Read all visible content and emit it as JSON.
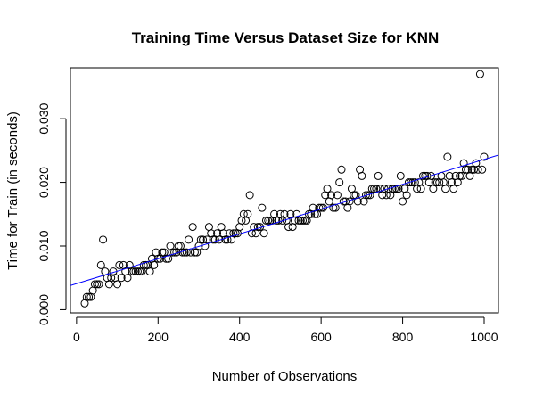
{
  "chart_data": {
    "type": "scatter",
    "title": "Training Time Versus Dataset Size for KNN",
    "xlabel": "Number of Observations",
    "ylabel": "Time for Train (in seconds)",
    "xlim": [
      -15,
      1035
    ],
    "ylim": [
      -0.0005,
      0.038
    ],
    "xticks": [
      0,
      200,
      400,
      600,
      800,
      1000
    ],
    "xtick_labels": [
      "0",
      "200",
      "400",
      "600",
      "800",
      "1000"
    ],
    "yticks": [
      0.0,
      0.01,
      0.02,
      0.03
    ],
    "ytick_labels": [
      "0.000",
      "0.010",
      "0.020",
      "0.030"
    ],
    "grid": false,
    "regression_line": {
      "intercept": 0.0041,
      "slope": 1.95e-05,
      "color": "#0000ff"
    },
    "series": [
      {
        "marker": "open-circle",
        "points": [
          [
            20,
            0.001
          ],
          [
            25,
            0.002
          ],
          [
            30,
            0.002
          ],
          [
            35,
            0.002
          ],
          [
            40,
            0.003
          ],
          [
            45,
            0.004
          ],
          [
            50,
            0.004
          ],
          [
            55,
            0.004
          ],
          [
            60,
            0.007
          ],
          [
            65,
            0.011
          ],
          [
            70,
            0.006
          ],
          [
            75,
            0.005
          ],
          [
            80,
            0.004
          ],
          [
            85,
            0.005
          ],
          [
            90,
            0.006
          ],
          [
            95,
            0.005
          ],
          [
            100,
            0.004
          ],
          [
            105,
            0.007
          ],
          [
            110,
            0.005
          ],
          [
            115,
            0.007
          ],
          [
            120,
            0.006
          ],
          [
            125,
            0.005
          ],
          [
            130,
            0.007
          ],
          [
            135,
            0.006
          ],
          [
            140,
            0.006
          ],
          [
            145,
            0.006
          ],
          [
            150,
            0.006
          ],
          [
            155,
            0.006
          ],
          [
            160,
            0.006
          ],
          [
            165,
            0.007
          ],
          [
            170,
            0.007
          ],
          [
            175,
            0.007
          ],
          [
            180,
            0.006
          ],
          [
            185,
            0.008
          ],
          [
            190,
            0.007
          ],
          [
            195,
            0.009
          ],
          [
            200,
            0.008
          ],
          [
            205,
            0.008
          ],
          [
            210,
            0.009
          ],
          [
            215,
            0.009
          ],
          [
            220,
            0.008
          ],
          [
            225,
            0.008
          ],
          [
            230,
            0.01
          ],
          [
            235,
            0.009
          ],
          [
            240,
            0.009
          ],
          [
            245,
            0.009
          ],
          [
            250,
            0.01
          ],
          [
            255,
            0.01
          ],
          [
            260,
            0.009
          ],
          [
            265,
            0.009
          ],
          [
            270,
            0.009
          ],
          [
            275,
            0.011
          ],
          [
            280,
            0.009
          ],
          [
            285,
            0.013
          ],
          [
            290,
            0.009
          ],
          [
            295,
            0.009
          ],
          [
            300,
            0.01
          ],
          [
            305,
            0.011
          ],
          [
            310,
            0.011
          ],
          [
            315,
            0.01
          ],
          [
            320,
            0.011
          ],
          [
            325,
            0.013
          ],
          [
            330,
            0.012
          ],
          [
            335,
            0.011
          ],
          [
            340,
            0.011
          ],
          [
            345,
            0.012
          ],
          [
            350,
            0.011
          ],
          [
            355,
            0.013
          ],
          [
            360,
            0.012
          ],
          [
            365,
            0.011
          ],
          [
            370,
            0.011
          ],
          [
            375,
            0.012
          ],
          [
            380,
            0.011
          ],
          [
            385,
            0.012
          ],
          [
            390,
            0.012
          ],
          [
            395,
            0.012
          ],
          [
            400,
            0.013
          ],
          [
            405,
            0.014
          ],
          [
            410,
            0.015
          ],
          [
            415,
            0.014
          ],
          [
            420,
            0.015
          ],
          [
            425,
            0.018
          ],
          [
            430,
            0.012
          ],
          [
            435,
            0.013
          ],
          [
            440,
            0.012
          ],
          [
            445,
            0.013
          ],
          [
            450,
            0.013
          ],
          [
            455,
            0.016
          ],
          [
            460,
            0.012
          ],
          [
            465,
            0.014
          ],
          [
            470,
            0.014
          ],
          [
            475,
            0.014
          ],
          [
            480,
            0.014
          ],
          [
            485,
            0.015
          ],
          [
            490,
            0.014
          ],
          [
            495,
            0.014
          ],
          [
            500,
            0.015
          ],
          [
            505,
            0.014
          ],
          [
            510,
            0.015
          ],
          [
            515,
            0.014
          ],
          [
            520,
            0.013
          ],
          [
            525,
            0.015
          ],
          [
            530,
            0.013
          ],
          [
            535,
            0.014
          ],
          [
            540,
            0.015
          ],
          [
            545,
            0.014
          ],
          [
            550,
            0.014
          ],
          [
            555,
            0.014
          ],
          [
            560,
            0.014
          ],
          [
            565,
            0.014
          ],
          [
            570,
            0.015
          ],
          [
            575,
            0.015
          ],
          [
            580,
            0.016
          ],
          [
            585,
            0.015
          ],
          [
            590,
            0.015
          ],
          [
            595,
            0.016
          ],
          [
            600,
            0.016
          ],
          [
            605,
            0.016
          ],
          [
            610,
            0.018
          ],
          [
            615,
            0.019
          ],
          [
            620,
            0.017
          ],
          [
            625,
            0.018
          ],
          [
            630,
            0.016
          ],
          [
            635,
            0.016
          ],
          [
            640,
            0.018
          ],
          [
            645,
            0.02
          ],
          [
            650,
            0.022
          ],
          [
            655,
            0.017
          ],
          [
            660,
            0.017
          ],
          [
            665,
            0.016
          ],
          [
            670,
            0.017
          ],
          [
            675,
            0.019
          ],
          [
            680,
            0.018
          ],
          [
            685,
            0.018
          ],
          [
            690,
            0.017
          ],
          [
            695,
            0.022
          ],
          [
            700,
            0.021
          ],
          [
            705,
            0.017
          ],
          [
            710,
            0.018
          ],
          [
            715,
            0.018
          ],
          [
            720,
            0.018
          ],
          [
            725,
            0.019
          ],
          [
            730,
            0.019
          ],
          [
            735,
            0.019
          ],
          [
            740,
            0.021
          ],
          [
            745,
            0.019
          ],
          [
            750,
            0.018
          ],
          [
            755,
            0.019
          ],
          [
            760,
            0.018
          ],
          [
            765,
            0.019
          ],
          [
            770,
            0.018
          ],
          [
            775,
            0.019
          ],
          [
            780,
            0.019
          ],
          [
            785,
            0.019
          ],
          [
            790,
            0.019
          ],
          [
            795,
            0.021
          ],
          [
            800,
            0.017
          ],
          [
            805,
            0.019
          ],
          [
            810,
            0.018
          ],
          [
            815,
            0.02
          ],
          [
            820,
            0.02
          ],
          [
            825,
            0.02
          ],
          [
            830,
            0.02
          ],
          [
            835,
            0.019
          ],
          [
            840,
            0.02
          ],
          [
            845,
            0.019
          ],
          [
            850,
            0.021
          ],
          [
            855,
            0.021
          ],
          [
            860,
            0.021
          ],
          [
            865,
            0.02
          ],
          [
            870,
            0.021
          ],
          [
            875,
            0.019
          ],
          [
            880,
            0.02
          ],
          [
            885,
            0.02
          ],
          [
            890,
            0.02
          ],
          [
            895,
            0.021
          ],
          [
            900,
            0.02
          ],
          [
            905,
            0.019
          ],
          [
            910,
            0.024
          ],
          [
            915,
            0.021
          ],
          [
            920,
            0.02
          ],
          [
            925,
            0.019
          ],
          [
            930,
            0.021
          ],
          [
            935,
            0.02
          ],
          [
            940,
            0.021
          ],
          [
            945,
            0.021
          ],
          [
            950,
            0.023
          ],
          [
            955,
            0.022
          ],
          [
            960,
            0.022
          ],
          [
            965,
            0.021
          ],
          [
            970,
            0.022
          ],
          [
            975,
            0.022
          ],
          [
            980,
            0.023
          ],
          [
            985,
            0.022
          ],
          [
            990,
            0.037
          ],
          [
            995,
            0.022
          ],
          [
            1000,
            0.024
          ]
        ]
      }
    ]
  }
}
